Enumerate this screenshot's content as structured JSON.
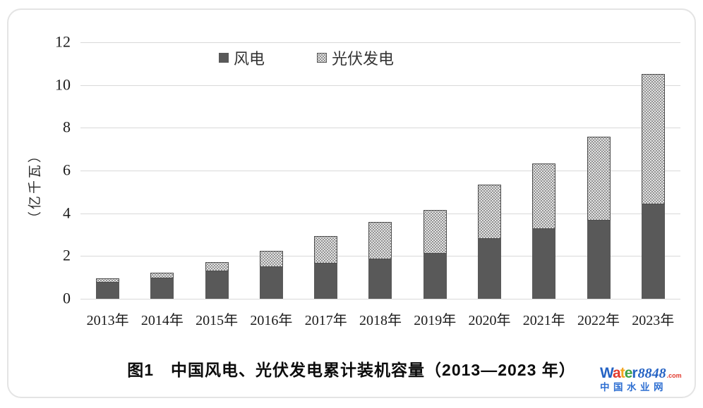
{
  "chart_data": {
    "type": "bar",
    "stacked": true,
    "title": "",
    "categories": [
      "2013年",
      "2014年",
      "2015年",
      "2016年",
      "2017年",
      "2018年",
      "2019年",
      "2020年",
      "2021年",
      "2022年",
      "2023年"
    ],
    "series": [
      {
        "name": "风电",
        "color": "#595959",
        "pattern": "solid",
        "values": [
          0.76,
          0.96,
          1.29,
          1.49,
          1.64,
          1.84,
          2.1,
          2.81,
          3.28,
          3.65,
          4.41
        ]
      },
      {
        "name": "光伏发电",
        "color": "#e4e4e4",
        "pattern": "dotted",
        "values": [
          0.19,
          0.28,
          0.43,
          0.77,
          1.3,
          1.74,
          2.04,
          2.53,
          3.06,
          3.93,
          6.09
        ]
      }
    ],
    "totals": [
      0.95,
      1.24,
      1.72,
      2.26,
      2.94,
      3.58,
      4.14,
      5.34,
      6.34,
      7.58,
      10.5
    ],
    "xlabel": "",
    "ylabel": "（亿千瓦）",
    "yticks": [
      0,
      2,
      4,
      6,
      8,
      10,
      12
    ],
    "ylim": [
      0,
      12
    ],
    "grid": true,
    "gridline_color": "#d9d9d9",
    "legend_position": "top-center"
  },
  "caption": "图1　中国风电、光伏发电累计装机容量（2013—2023 年）",
  "watermark": {
    "brand_letters": [
      {
        "ch": "W",
        "color": "#2563c4"
      },
      {
        "ch": "a",
        "color": "#e23a2e"
      },
      {
        "ch": "t",
        "color": "#f2a51e"
      },
      {
        "ch": "e",
        "color": "#3da144"
      },
      {
        "ch": "r",
        "color": "#2563c4"
      }
    ],
    "brand_number": "8848",
    "brand_tld": ".com",
    "subtitle": "中国水业网"
  }
}
